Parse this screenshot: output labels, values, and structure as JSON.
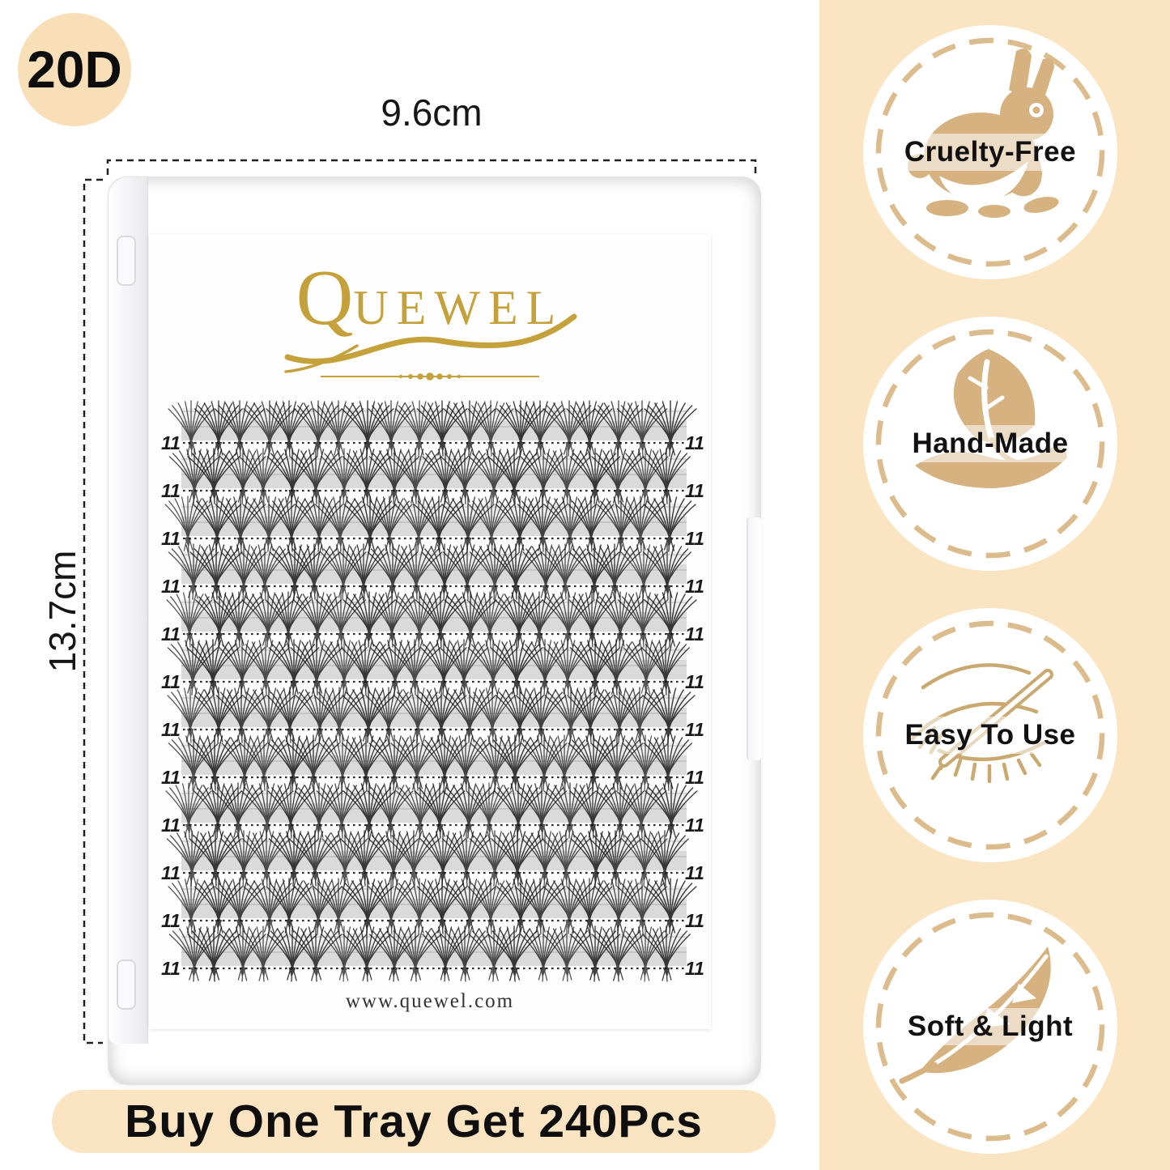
{
  "product_badge": {
    "label": "20D"
  },
  "dimension_annotations": {
    "width": "9.6cm",
    "height": "13.7cm"
  },
  "tray": {
    "brand_initial": "Q",
    "brand_rest": "UEWEL",
    "website": "www.quewel.com",
    "rows": 12,
    "clusters_per_row": 20,
    "row_length_label": "11"
  },
  "banner": {
    "text": "Buy One Tray Get 240Pcs"
  },
  "features": [
    {
      "label": "Cruelty-Free",
      "icon": "rabbit-icon"
    },
    {
      "label": "Hand-Made",
      "icon": "hand-leaf-icon"
    },
    {
      "label": "Easy To Use",
      "icon": "eye-tweezer-icon"
    },
    {
      "label": "Soft & Light",
      "icon": "feather-icon"
    }
  ],
  "colors": {
    "background": "#FFFFFF",
    "side_panel_cream": "#FAE4C2",
    "badge_cream": "#F9DFB7",
    "banner_cream": "#FBE4C2",
    "logo_gold": "#C5A13C",
    "icon_tan": "#D6B280",
    "icon_outline_tan": "#C9A96F",
    "ring_dash_tan": "#DCBB8D",
    "lash_black": "#141414",
    "text_black": "#111111"
  }
}
